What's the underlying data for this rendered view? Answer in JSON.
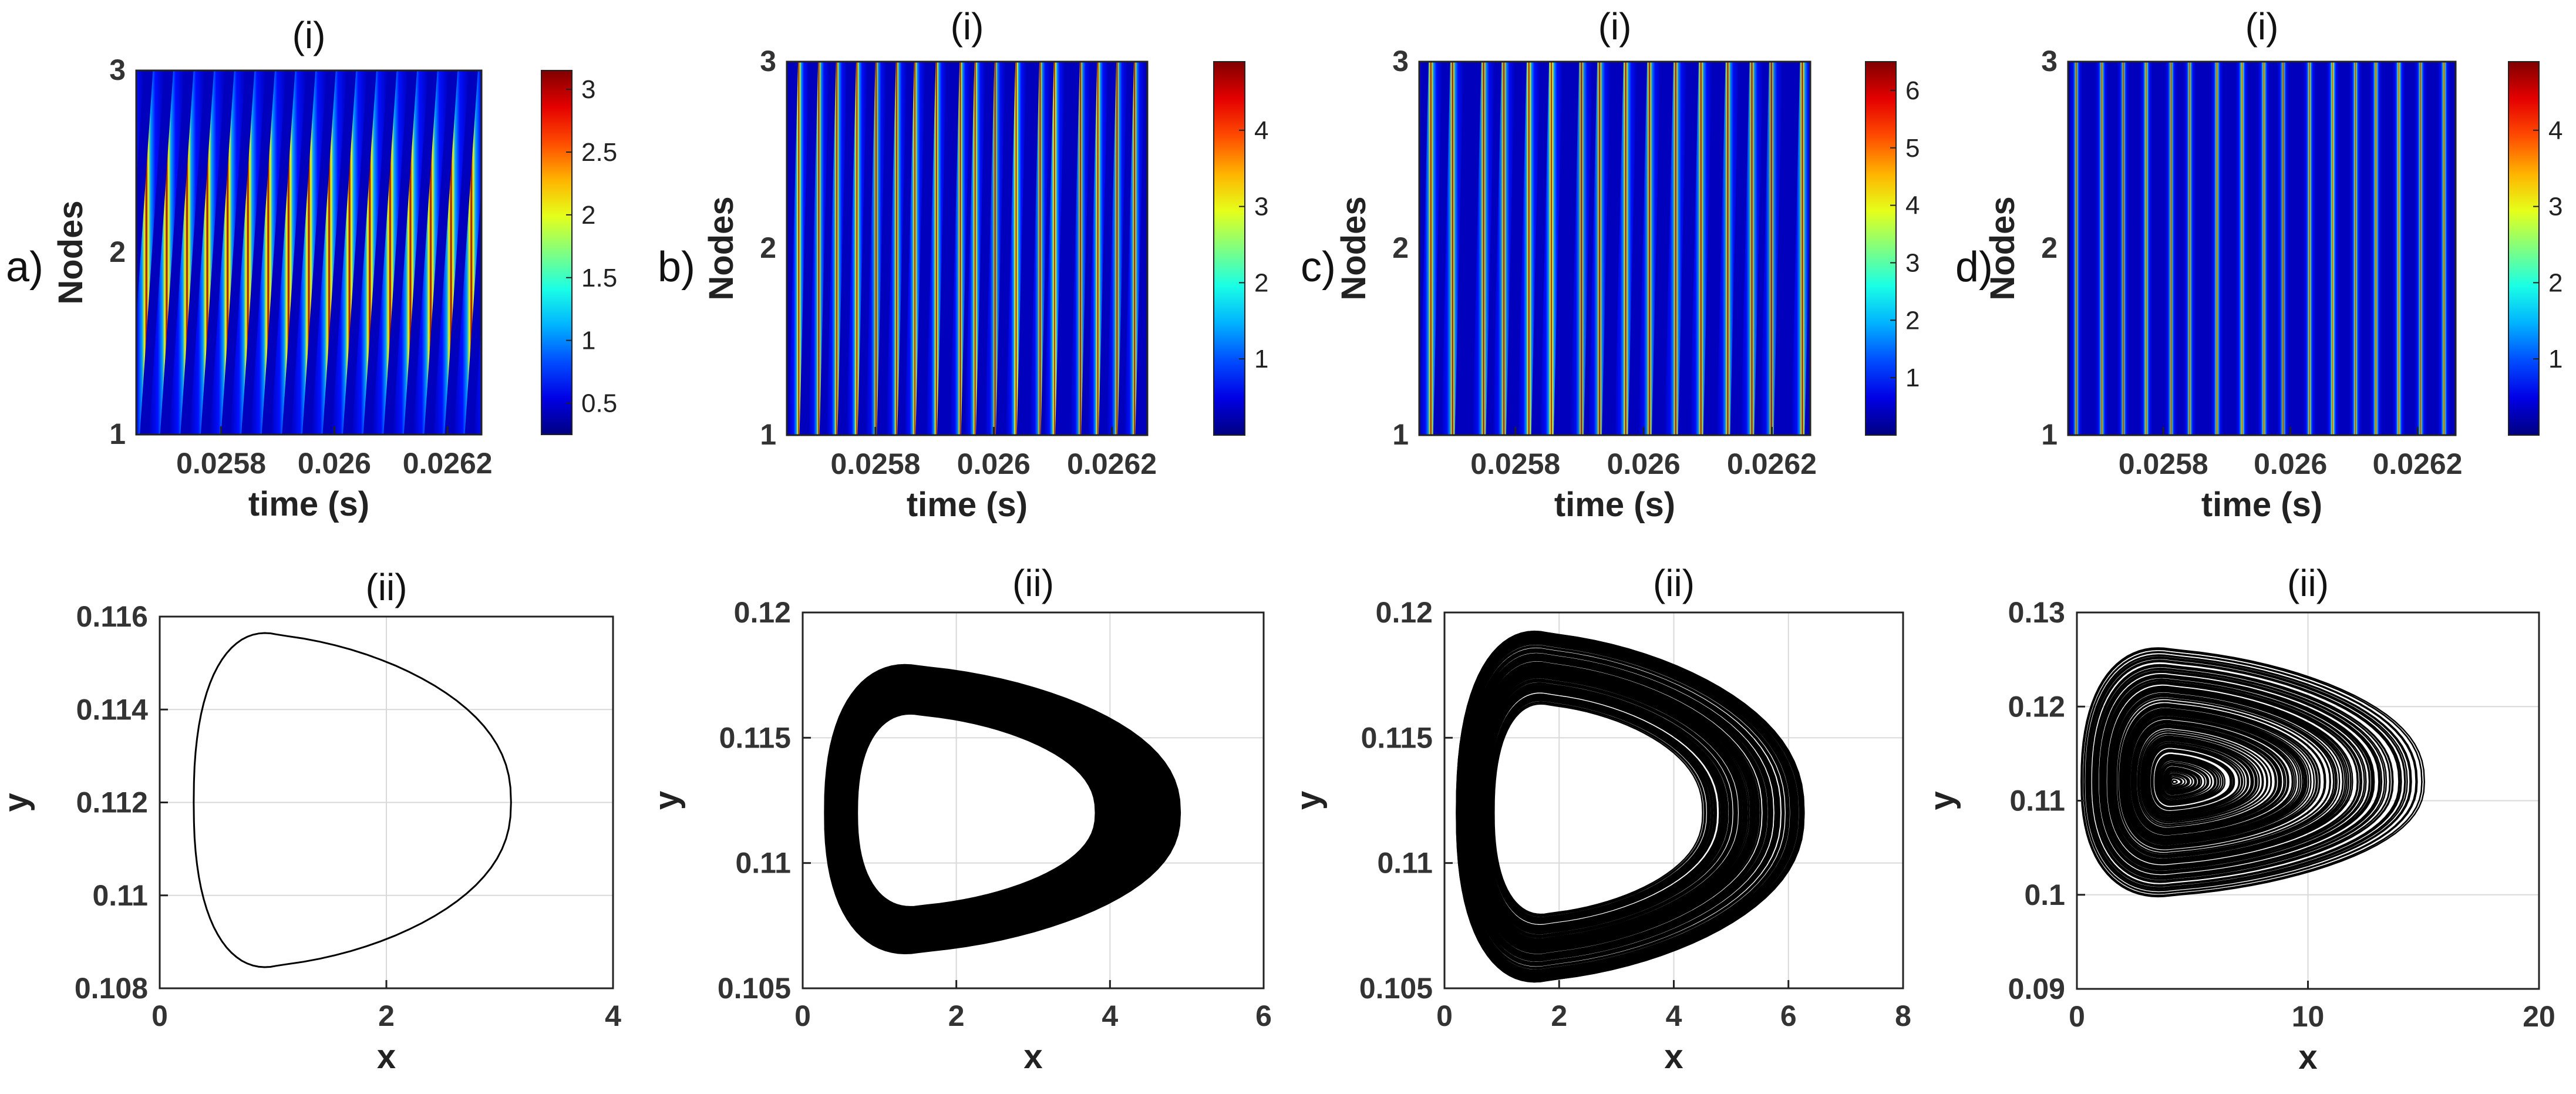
{
  "figure": {
    "rows": [
      {
        "panel_label": "(i)"
      },
      {
        "panel_label": "(ii)"
      }
    ],
    "columns": [
      "a)",
      "b)",
      "c)",
      "d)"
    ]
  },
  "colors": {
    "colormap": "jet",
    "trajectory": "#000000",
    "grid": "#d9d9d9",
    "axes": "#333333"
  },
  "chart_data": [
    {
      "type": "heatmap",
      "column": "a)",
      "title": "(i)",
      "xlabel": "time (s)",
      "ylabel": "Nodes",
      "x_ticks": [
        "0.0258",
        "0.026",
        "0.0262"
      ],
      "x_tick_values": [
        0.0258,
        0.026,
        0.0262
      ],
      "xlim": [
        0.02565,
        0.02626
      ],
      "y_ticks": [
        "1",
        "2",
        "3"
      ],
      "ylim": [
        1,
        3
      ],
      "colorbar_ticks": [
        "0.5",
        "1",
        "1.5",
        "2",
        "2.5",
        "3"
      ],
      "colorbar_tick_values": [
        0.5,
        1,
        1.5,
        2,
        2.5,
        3
      ],
      "clim": [
        0.25,
        3.15
      ],
      "stripe_count": 17,
      "stripe_skew": 1,
      "regularity": "periodic"
    },
    {
      "type": "heatmap",
      "column": "b)",
      "title": "(i)",
      "xlabel": "time (s)",
      "ylabel": "Nodes",
      "x_ticks": [
        "0.0258",
        "0.026",
        "0.0262"
      ],
      "x_tick_values": [
        0.0258,
        0.026,
        0.0262
      ],
      "xlim": [
        0.02565,
        0.02626
      ],
      "y_ticks": [
        "1",
        "2",
        "3"
      ],
      "ylim": [
        1,
        3
      ],
      "colorbar_ticks": [
        "1",
        "2",
        "3",
        "4"
      ],
      "colorbar_tick_values": [
        1,
        2,
        3,
        4
      ],
      "clim": [
        0,
        4.9
      ],
      "stripe_count": 18,
      "stripe_skew": 0.4,
      "regularity": "quasi-periodic"
    },
    {
      "type": "heatmap",
      "column": "c)",
      "title": "(i)",
      "xlabel": "time (s)",
      "ylabel": "Nodes",
      "x_ticks": [
        "0.0258",
        "0.026",
        "0.0262"
      ],
      "x_tick_values": [
        0.0258,
        0.026,
        0.0262
      ],
      "xlim": [
        0.02565,
        0.02626
      ],
      "y_ticks": [
        "1",
        "2",
        "3"
      ],
      "ylim": [
        1,
        3
      ],
      "colorbar_ticks": [
        "1",
        "2",
        "3",
        "4",
        "5",
        "6"
      ],
      "colorbar_tick_values": [
        1,
        2,
        3,
        4,
        5,
        6
      ],
      "clim": [
        0,
        6.5
      ],
      "stripe_count": 16,
      "stripe_skew": 0.3,
      "regularity": "chaotic"
    },
    {
      "type": "heatmap",
      "column": "d)",
      "title": "(i)",
      "xlabel": "time (s)",
      "ylabel": "Nodes",
      "x_ticks": [
        "0.0258",
        "0.026",
        "0.0262"
      ],
      "x_tick_values": [
        0.0258,
        0.026,
        0.0262
      ],
      "xlim": [
        0.02565,
        0.02626
      ],
      "y_ticks": [
        "1",
        "2",
        "3"
      ],
      "ylim": [
        1,
        3
      ],
      "colorbar_ticks": [
        "1",
        "2",
        "3",
        "4"
      ],
      "colorbar_tick_values": [
        1,
        2,
        3,
        4
      ],
      "clim": [
        0,
        4.9
      ],
      "stripe_count": 17,
      "stripe_skew": 0,
      "regularity": "chaotic"
    },
    {
      "type": "line",
      "column": "a)",
      "title": "(ii)",
      "xlabel": "x",
      "ylabel": "y",
      "x_ticks": [
        "0",
        "2",
        "4"
      ],
      "x_tick_values": [
        0,
        2,
        4
      ],
      "xlim": [
        0,
        4
      ],
      "y_ticks": [
        "0.108",
        "0.11",
        "0.112",
        "0.114",
        "0.116"
      ],
      "y_tick_values": [
        0.108,
        0.11,
        0.112,
        0.114,
        0.116
      ],
      "ylim": [
        0.108,
        0.116
      ],
      "grid": true,
      "attractor": {
        "kind": "limit cycle",
        "x_min": 0.3,
        "x_max": 3.1,
        "y_center": 0.112,
        "y_min": 0.1085,
        "y_max": 0.1156,
        "ring_width": 0,
        "loops": 1
      }
    },
    {
      "type": "line",
      "column": "b)",
      "title": "(ii)",
      "xlabel": "x",
      "ylabel": "y",
      "x_ticks": [
        "0",
        "2",
        "4",
        "6"
      ],
      "x_tick_values": [
        0,
        2,
        4,
        6
      ],
      "xlim": [
        0,
        6
      ],
      "y_ticks": [
        "0.105",
        "0.11",
        "0.115",
        "0.12"
      ],
      "y_tick_values": [
        0.105,
        0.11,
        0.115,
        0.12
      ],
      "ylim": [
        0.105,
        0.12
      ],
      "grid": true,
      "attractor": {
        "kind": "quasi-periodic band",
        "x_min": 0.3,
        "x_max": 4.9,
        "y_center": 0.112,
        "y_min": 0.1065,
        "y_max": 0.1178,
        "ring_width": 0.32,
        "loops": 60
      }
    },
    {
      "type": "line",
      "column": "c)",
      "title": "(ii)",
      "xlabel": "x",
      "ylabel": "y",
      "x_ticks": [
        "0",
        "2",
        "4",
        "6",
        "8"
      ],
      "x_tick_values": [
        0,
        2,
        4,
        6,
        8
      ],
      "xlim": [
        0,
        8
      ],
      "y_ticks": [
        "0.105",
        "0.11",
        "0.115",
        "0.12"
      ],
      "y_tick_values": [
        0.105,
        0.11,
        0.115,
        0.12
      ],
      "ylim": [
        0.105,
        0.12
      ],
      "grid": true,
      "attractor": {
        "kind": "chaotic band",
        "x_min": 0.2,
        "x_max": 6.3,
        "y_center": 0.112,
        "y_min": 0.1053,
        "y_max": 0.1192,
        "ring_width": 0.4,
        "loops": 140
      }
    },
    {
      "type": "line",
      "column": "d)",
      "title": "(ii)",
      "xlabel": "x",
      "ylabel": "y",
      "x_ticks": [
        "0",
        "10",
        "20"
      ],
      "x_tick_values": [
        0,
        10,
        20
      ],
      "xlim": [
        0,
        20
      ],
      "y_ticks": [
        "0.09",
        "0.1",
        "0.11",
        "0.12",
        "0.13"
      ],
      "y_tick_values": [
        0.09,
        0.1,
        0.11,
        0.12,
        0.13
      ],
      "ylim": [
        0.09,
        0.13
      ],
      "grid": true,
      "attractor": {
        "kind": "chaotic attractor",
        "x_min": 0.2,
        "x_max": 15,
        "y_center": 0.112,
        "y_min": 0.1,
        "y_max": 0.126,
        "ring_width": 0.98,
        "loops": 140
      }
    }
  ]
}
